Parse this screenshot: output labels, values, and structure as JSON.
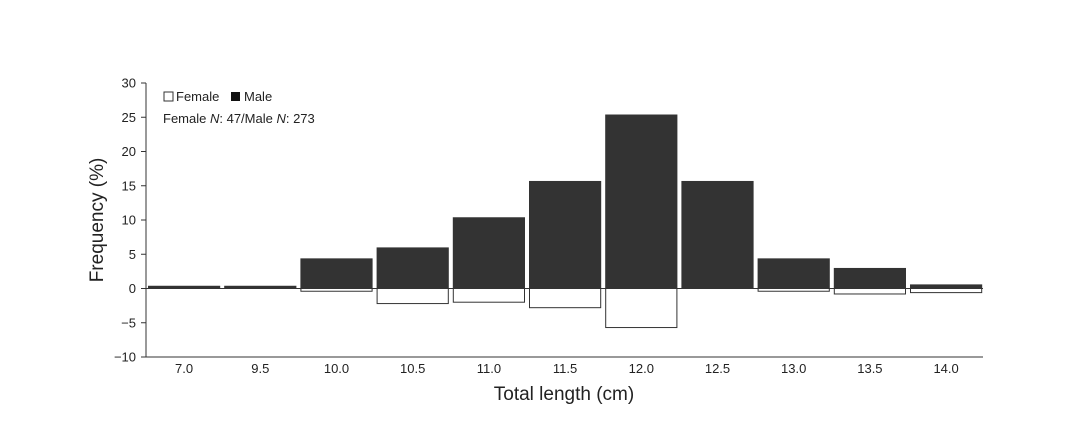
{
  "chart_data": {
    "type": "bar",
    "xlabel": "Total length (cm)",
    "ylabel": "Frequency (%)",
    "ylim": [
      -10,
      30
    ],
    "yticks": [
      30,
      25,
      20,
      15,
      10,
      5,
      0,
      -5,
      -10
    ],
    "categories": [
      "7.0",
      "9.5",
      "10.0",
      "10.5",
      "11.0",
      "11.5",
      "12.0",
      "12.5",
      "13.0",
      "13.5",
      "14.0"
    ],
    "series": [
      {
        "name": "Male",
        "values": [
          0.4,
          0.4,
          4.4,
          6.0,
          10.4,
          15.7,
          25.4,
          15.7,
          4.4,
          3.0,
          0.6
        ]
      },
      {
        "name": "Female",
        "values": [
          0,
          0,
          -0.4,
          -2.2,
          -2.0,
          -2.8,
          -5.7,
          0,
          -0.4,
          -0.8,
          -0.6
        ]
      }
    ],
    "colors": {
      "Male": "#333333",
      "Female": "#ffffff"
    },
    "legend": {
      "placement": "top-left",
      "female_label": "Female",
      "male_label": "Male",
      "sample_prefix_female": "Female ",
      "sample_n": "N",
      "sample_female_value": ": 47/Male ",
      "sample_male_value": ": 273"
    },
    "grid": false
  }
}
